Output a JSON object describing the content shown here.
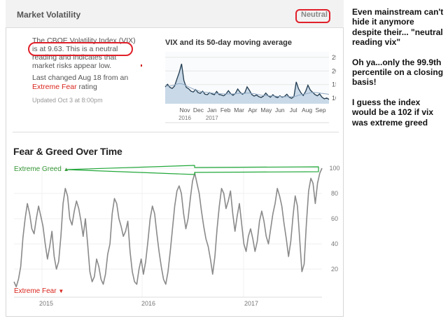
{
  "market_volatility": {
    "title": "Market Volatility",
    "badge": "Neutral",
    "description": "The CBOE Volatility Index (VIX) is at 9.63. This is a neutral reading and indicates that market risks appear low.",
    "last_changed_prefix": "Last changed Aug 18 from an",
    "last_changed_rating": "Extreme Fear",
    "last_changed_suffix": "rating",
    "updated": "Updated Oct 3 at 8:00pm"
  },
  "fear_greed": {
    "title": "Fear & Greed Over Time",
    "extreme_greed_label": "Extreme Greed",
    "extreme_fear_label": "Extreme Fear"
  },
  "annotation": {
    "paragraph_1": "Even mainstream can't hide it anymore despite their... \"neutral reading vix\"",
    "paragraph_2": "Oh ya...only the 99.9th percentile on a closing basis!",
    "paragraph_3": "I guess the index would be a 102 if vix was extreme greed"
  },
  "colors": {
    "highlight_red": "#e0202a",
    "greed_green": "#3a9a3a",
    "fear_red": "#d9251d",
    "vix_line": "#1f3a4f",
    "vix_fill": "#c9d9e8",
    "fg_line": "#8a8a8a"
  },
  "chart_data": [
    {
      "type": "area",
      "title": "VIX and its 50-day moving average",
      "ylim": [
        8,
        27
      ],
      "y_ticks": [
        25,
        20,
        15,
        10
      ],
      "x_tick_labels": [
        {
          "label": "Nov",
          "year": "2016"
        },
        {
          "label": "Dec",
          "year": ""
        },
        {
          "label": "Jan",
          "year": "2017"
        },
        {
          "label": "Feb",
          "year": ""
        },
        {
          "label": "Mar",
          "year": ""
        },
        {
          "label": "Apr",
          "year": ""
        },
        {
          "label": "May",
          "year": ""
        },
        {
          "label": "Jun",
          "year": ""
        },
        {
          "label": "Jul",
          "year": ""
        },
        {
          "label": "Aug",
          "year": ""
        },
        {
          "label": "Sep",
          "year": ""
        }
      ],
      "series": [
        {
          "name": "VIX",
          "values": [
            14.2,
            15.1,
            14.0,
            13.6,
            14.5,
            17.0,
            19.5,
            22.6,
            16.5,
            14.0,
            13.5,
            12.6,
            12.3,
            13.2,
            12.1,
            11.8,
            12.6,
            11.5,
            11.3,
            12.1,
            11.6,
            11.3,
            12.5,
            11.4,
            11.2,
            10.9,
            11.6,
            12.8,
            11.7,
            11.1,
            11.8,
            13.4,
            12.2,
            11.5,
            12.0,
            14.2,
            12.9,
            11.4,
            10.8,
            11.2,
            10.6,
            10.3,
            10.8,
            11.9,
            10.9,
            10.4,
            11.3,
            10.6,
            10.2,
            10.9,
            10.4,
            10.7,
            11.5,
            10.4,
            10.0,
            10.6,
            16.0,
            13.5,
            12.0,
            11.0,
            12.5,
            14.8,
            13.0,
            12.2,
            11.4,
            10.9,
            11.6,
            10.4,
            9.8,
            10.1,
            9.6
          ]
        },
        {
          "name": "50-day moving average",
          "values": [
            14.6,
            14.5,
            14.5,
            14.6,
            14.9,
            15.2,
            15.4,
            15.3,
            15.0,
            14.6,
            14.2,
            13.8,
            13.4,
            13.1,
            12.8,
            12.5,
            12.3,
            12.2,
            12.1,
            12.0,
            11.9,
            11.8,
            11.8,
            11.7,
            11.7,
            11.6,
            11.6,
            11.6,
            11.6,
            11.6,
            11.7,
            11.8,
            11.8,
            11.8,
            11.8,
            11.9,
            11.9,
            11.8,
            11.7,
            11.5,
            11.3,
            11.1,
            11.0,
            11.0,
            10.9,
            10.9,
            10.9,
            10.8,
            10.7,
            10.7,
            10.6,
            10.6,
            10.6,
            10.6,
            10.6,
            10.6,
            10.8,
            11.1,
            11.3,
            11.5,
            11.6,
            11.8,
            12.0,
            12.1,
            12.1,
            12.0,
            11.9,
            11.8,
            11.7,
            11.6,
            11.4
          ]
        }
      ]
    },
    {
      "type": "line",
      "title": "Fear & Greed Over Time",
      "ylim": [
        0,
        100
      ],
      "y_ticks": [
        100,
        80,
        60,
        40,
        20
      ],
      "x_tick_labels": [
        "2015",
        "2016",
        "2017"
      ],
      "series": [
        {
          "name": "Fear & Greed Index",
          "values": [
            10,
            6,
            12,
            22,
            45,
            60,
            72,
            64,
            52,
            48,
            60,
            70,
            62,
            54,
            40,
            28,
            38,
            50,
            30,
            20,
            26,
            46,
            72,
            84,
            78,
            60,
            55,
            66,
            74,
            68,
            58,
            46,
            60,
            40,
            18,
            10,
            14,
            28,
            22,
            12,
            8,
            16,
            32,
            40,
            64,
            76,
            72,
            60,
            54,
            46,
            50,
            58,
            34,
            18,
            10,
            8,
            20,
            28,
            16,
            26,
            42,
            60,
            70,
            64,
            48,
            34,
            22,
            12,
            8,
            18,
            34,
            52,
            70,
            82,
            86,
            80,
            64,
            52,
            60,
            76,
            90,
            96,
            88,
            80,
            66,
            54,
            44,
            38,
            28,
            16,
            30,
            52,
            70,
            84,
            80,
            68,
            74,
            82,
            64,
            50,
            62,
            72,
            56,
            40,
            34,
            46,
            52,
            44,
            34,
            42,
            58,
            66,
            58,
            46,
            40,
            52,
            64,
            72,
            84,
            78,
            70,
            56,
            44,
            30,
            42,
            62,
            78,
            70,
            44,
            18,
            24,
            56,
            82,
            92,
            88,
            72,
            88,
            96,
            100
          ]
        }
      ]
    }
  ]
}
